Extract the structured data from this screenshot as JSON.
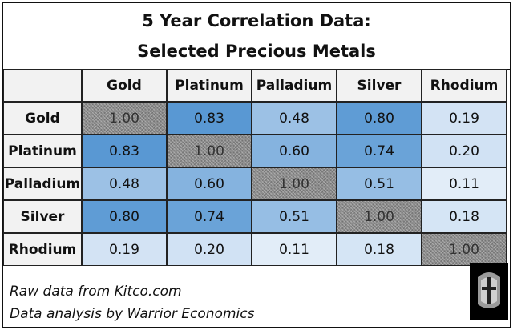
{
  "title": {
    "line1": "5 Year Correlation Data:",
    "line2": "Selected Precious Metals"
  },
  "chart_data": {
    "type": "heatmap",
    "columns": [
      "Gold",
      "Platinum",
      "Palladium",
      "Silver",
      "Rhodium"
    ],
    "rows": [
      "Gold",
      "Platinum",
      "Palladium",
      "Silver",
      "Rhodium"
    ],
    "values": [
      [
        1.0,
        0.83,
        0.48,
        0.8,
        0.19
      ],
      [
        0.83,
        1.0,
        0.6,
        0.74,
        0.2
      ],
      [
        0.48,
        0.6,
        1.0,
        0.51,
        0.11
      ],
      [
        0.8,
        0.74,
        0.51,
        1.0,
        0.18
      ],
      [
        0.19,
        0.2,
        0.11,
        0.18,
        1.0
      ]
    ],
    "labels": [
      [
        "1.00",
        "0.83",
        "0.48",
        "0.80",
        "0.19"
      ],
      [
        "0.83",
        "1.00",
        "0.60",
        "0.74",
        "0.20"
      ],
      [
        "0.48",
        "0.60",
        "1.00",
        "0.51",
        "0.11"
      ],
      [
        "0.80",
        "0.74",
        "0.51",
        "1.00",
        "0.18"
      ],
      [
        "0.19",
        "0.20",
        "0.11",
        "0.18",
        "1.00"
      ]
    ],
    "color_low": "#e4eef9",
    "color_high": "#5596d2",
    "diagonal_color": "#8c8c8c"
  },
  "footer": {
    "line1": "Raw data from Kitco.com",
    "line2": "Data analysis by Warrior Economics"
  },
  "logo": {
    "icon": "warrior-helmet-icon"
  }
}
